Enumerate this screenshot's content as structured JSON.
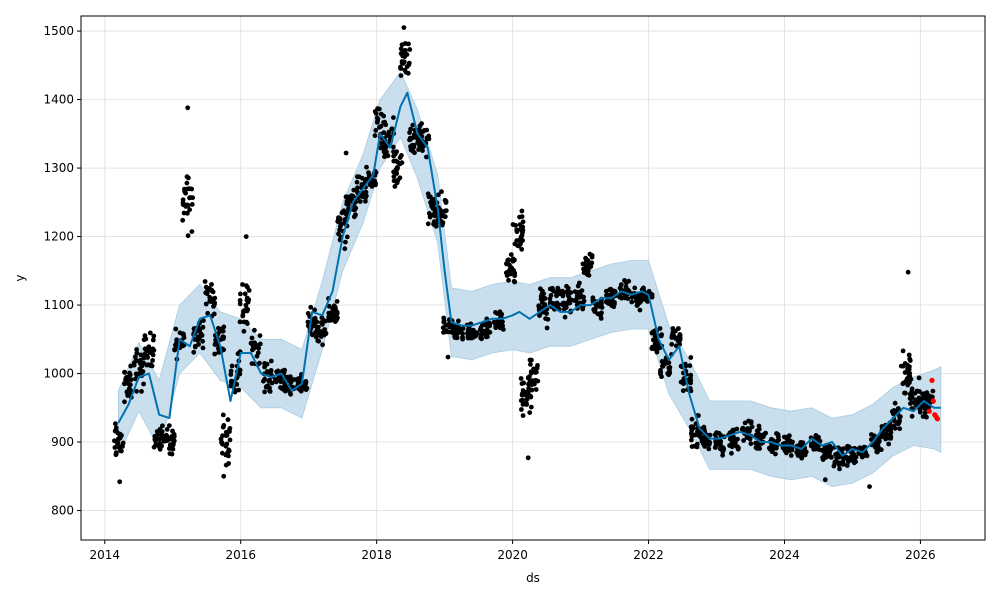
{
  "chart_data": {
    "type": "scatter",
    "title": "",
    "xlabel": "ds",
    "ylabel": "y",
    "xlim": [
      2013.65,
      2026.95
    ],
    "ylim": [
      757,
      1522
    ],
    "x_ticks": [
      2014,
      2016,
      2018,
      2020,
      2022,
      2024,
      2026
    ],
    "x_tick_labels": [
      "2014",
      "2016",
      "2018",
      "2020",
      "2022",
      "2024",
      "2026"
    ],
    "y_ticks": [
      800,
      900,
      1000,
      1100,
      1200,
      1300,
      1400,
      1500
    ],
    "y_tick_labels": [
      "800",
      "900",
      "1000",
      "1100",
      "1200",
      "1300",
      "1400",
      "1500"
    ],
    "grid": true,
    "colors": {
      "observed": "#000000",
      "forecast": "#0072B2",
      "interval": "#bfd9ea",
      "holdout": "#ff0000"
    },
    "series": [
      {
        "kind": "observed_points",
        "approximate_segments": [
          [
            2014.2,
            900,
            40
          ],
          [
            2014.35,
            985,
            35
          ],
          [
            2014.5,
            1005,
            45
          ],
          [
            2014.65,
            1035,
            35
          ],
          [
            2014.8,
            905,
            30
          ],
          [
            2014.95,
            900,
            30
          ],
          [
            2015.1,
            1045,
            30
          ],
          [
            2015.22,
            1260,
            70
          ],
          [
            2015.38,
            1055,
            35
          ],
          [
            2015.55,
            1110,
            45
          ],
          [
            2015.68,
            1050,
            35
          ],
          [
            2015.78,
            905,
            45
          ],
          [
            2015.92,
            1000,
            50
          ],
          [
            2016.05,
            1095,
            55
          ],
          [
            2016.22,
            1040,
            35
          ],
          [
            2016.4,
            995,
            30
          ],
          [
            2016.58,
            995,
            25
          ],
          [
            2016.72,
            980,
            20
          ],
          [
            2016.9,
            985,
            20
          ],
          [
            2017.05,
            1075,
            30
          ],
          [
            2017.2,
            1060,
            25
          ],
          [
            2017.35,
            1090,
            30
          ],
          [
            2017.5,
            1210,
            45
          ],
          [
            2017.62,
            1245,
            30
          ],
          [
            2017.78,
            1265,
            30
          ],
          [
            2017.92,
            1285,
            30
          ],
          [
            2018.05,
            1350,
            55
          ],
          [
            2018.18,
            1340,
            50
          ],
          [
            2018.3,
            1300,
            45
          ],
          [
            2018.42,
            1460,
            40
          ],
          [
            2018.55,
            1340,
            35
          ],
          [
            2018.7,
            1340,
            35
          ],
          [
            2018.82,
            1240,
            40
          ],
          [
            2018.95,
            1235,
            35
          ],
          [
            2019.05,
            1070,
            30
          ],
          [
            2019.2,
            1060,
            20
          ],
          [
            2019.4,
            1062,
            20
          ],
          [
            2019.6,
            1065,
            20
          ],
          [
            2019.8,
            1075,
            20
          ],
          [
            2019.98,
            1155,
            35
          ],
          [
            2020.08,
            1210,
            45
          ],
          [
            2020.2,
            970,
            55
          ],
          [
            2020.3,
            1000,
            45
          ],
          [
            2020.45,
            1095,
            40
          ],
          [
            2020.62,
            1110,
            40
          ],
          [
            2020.8,
            1105,
            35
          ],
          [
            2020.98,
            1110,
            30
          ],
          [
            2021.1,
            1160,
            30
          ],
          [
            2021.25,
            1100,
            25
          ],
          [
            2021.45,
            1110,
            25
          ],
          [
            2021.65,
            1120,
            20
          ],
          [
            2021.82,
            1110,
            20
          ],
          [
            2021.98,
            1115,
            20
          ],
          [
            2022.12,
            1050,
            30
          ],
          [
            2022.25,
            1010,
            25
          ],
          [
            2022.4,
            1050,
            30
          ],
          [
            2022.55,
            995,
            35
          ],
          [
            2022.7,
            915,
            30
          ],
          [
            2022.85,
            905,
            25
          ],
          [
            2023.05,
            895,
            25
          ],
          [
            2023.25,
            905,
            30
          ],
          [
            2023.45,
            915,
            30
          ],
          [
            2023.65,
            905,
            25
          ],
          [
            2023.85,
            900,
            20
          ],
          [
            2024.05,
            895,
            20
          ],
          [
            2024.25,
            890,
            20
          ],
          [
            2024.45,
            900,
            20
          ],
          [
            2024.62,
            885,
            20
          ],
          [
            2024.8,
            880,
            25
          ],
          [
            2024.98,
            880,
            20
          ],
          [
            2025.15,
            885,
            20
          ],
          [
            2025.35,
            895,
            20
          ],
          [
            2025.5,
            915,
            25
          ],
          [
            2025.65,
            935,
            25
          ],
          [
            2025.78,
            1000,
            45
          ],
          [
            2025.92,
            965,
            35
          ],
          [
            2026.05,
            955,
            30
          ],
          [
            2026.12,
            960,
            25
          ]
        ],
        "outliers": [
          [
            2014.22,
            842
          ],
          [
            2015.22,
            1388
          ],
          [
            2015.75,
            850
          ],
          [
            2016.08,
            1200
          ],
          [
            2017.55,
            1322
          ],
          [
            2018.4,
            1505
          ],
          [
            2019.05,
            1024
          ],
          [
            2020.23,
            877
          ],
          [
            2024.6,
            845
          ],
          [
            2025.25,
            835
          ],
          [
            2025.82,
            1148
          ]
        ]
      },
      {
        "kind": "forecast_line",
        "x": [
          2014.2,
          2014.35,
          2014.5,
          2014.65,
          2014.8,
          2014.95,
          2015.1,
          2015.25,
          2015.4,
          2015.55,
          2015.7,
          2015.85,
          2016.0,
          2016.15,
          2016.3,
          2016.45,
          2016.6,
          2016.75,
          2016.9,
          2017.05,
          2017.2,
          2017.35,
          2017.5,
          2017.65,
          2017.8,
          2017.95,
          2018.05,
          2018.2,
          2018.35,
          2018.45,
          2018.6,
          2018.75,
          2018.9,
          2019.0,
          2019.1,
          2019.25,
          2019.4,
          2019.55,
          2019.7,
          2019.85,
          2020.0,
          2020.1,
          2020.25,
          2020.4,
          2020.55,
          2020.7,
          2020.85,
          2021.0,
          2021.15,
          2021.3,
          2021.45,
          2021.6,
          2021.75,
          2021.9,
          2022.0,
          2022.15,
          2022.3,
          2022.45,
          2022.6,
          2022.75,
          2022.9,
          2023.05,
          2023.2,
          2023.35,
          2023.5,
          2023.65,
          2023.8,
          2023.95,
          2024.1,
          2024.25,
          2024.4,
          2024.55,
          2024.7,
          2024.85,
          2025.0,
          2025.15,
          2025.3,
          2025.45,
          2025.6,
          2025.75,
          2025.9,
          2026.05,
          2026.2,
          2026.3
        ],
        "y": [
          928,
          955,
          995,
          1000,
          940,
          935,
          1050,
          1040,
          1080,
          1085,
          1040,
          960,
          1030,
          1030,
          1000,
          995,
          1000,
          975,
          985,
          1090,
          1085,
          1120,
          1200,
          1250,
          1270,
          1290,
          1350,
          1330,
          1390,
          1410,
          1350,
          1330,
          1240,
          1150,
          1075,
          1070,
          1070,
          1075,
          1080,
          1080,
          1085,
          1090,
          1080,
          1090,
          1100,
          1090,
          1090,
          1100,
          1100,
          1110,
          1110,
          1120,
          1115,
          1120,
          1115,
          1050,
          1020,
          1040,
          970,
          920,
          905,
          905,
          910,
          915,
          910,
          900,
          900,
          895,
          895,
          890,
          905,
          895,
          900,
          880,
          890,
          885,
          900,
          920,
          935,
          950,
          945,
          960,
          950,
          950
        ]
      },
      {
        "kind": "uncertainty_interval",
        "x": [
          2014.2,
          2014.5,
          2014.8,
          2015.1,
          2015.4,
          2015.7,
          2016.0,
          2016.3,
          2016.6,
          2016.9,
          2017.2,
          2017.5,
          2017.8,
          2018.05,
          2018.35,
          2018.6,
          2018.9,
          2019.1,
          2019.4,
          2019.7,
          2020.0,
          2020.25,
          2020.55,
          2020.85,
          2021.15,
          2021.45,
          2021.75,
          2022.0,
          2022.3,
          2022.6,
          2022.9,
          2023.2,
          2023.5,
          2023.8,
          2024.1,
          2024.4,
          2024.7,
          2025.0,
          2025.3,
          2025.6,
          2025.9,
          2026.2,
          2026.3
        ],
        "lower": [
          880,
          945,
          890,
          1000,
          1030,
          990,
          980,
          950,
          950,
          935,
          1035,
          1150,
          1220,
          1300,
          1345,
          1285,
          1190,
          1025,
          1020,
          1030,
          1035,
          1030,
          1040,
          1040,
          1050,
          1060,
          1065,
          1065,
          970,
          920,
          860,
          860,
          860,
          850,
          845,
          850,
          835,
          840,
          855,
          880,
          895,
          890,
          885
        ],
        "upper": [
          975,
          1045,
          990,
          1100,
          1130,
          1090,
          1080,
          1050,
          1050,
          1035,
          1135,
          1250,
          1320,
          1400,
          1440,
          1385,
          1290,
          1125,
          1120,
          1130,
          1135,
          1130,
          1140,
          1140,
          1150,
          1160,
          1165,
          1165,
          1070,
          1020,
          960,
          960,
          960,
          950,
          945,
          950,
          935,
          940,
          955,
          980,
          995,
          1005,
          1010
        ]
      },
      {
        "kind": "holdout_points",
        "points": [
          [
            2026.13,
            945
          ],
          [
            2026.17,
            990
          ],
          [
            2026.19,
            960
          ],
          [
            2026.21,
            940
          ],
          [
            2026.23,
            937
          ],
          [
            2026.25,
            934
          ]
        ]
      }
    ]
  }
}
